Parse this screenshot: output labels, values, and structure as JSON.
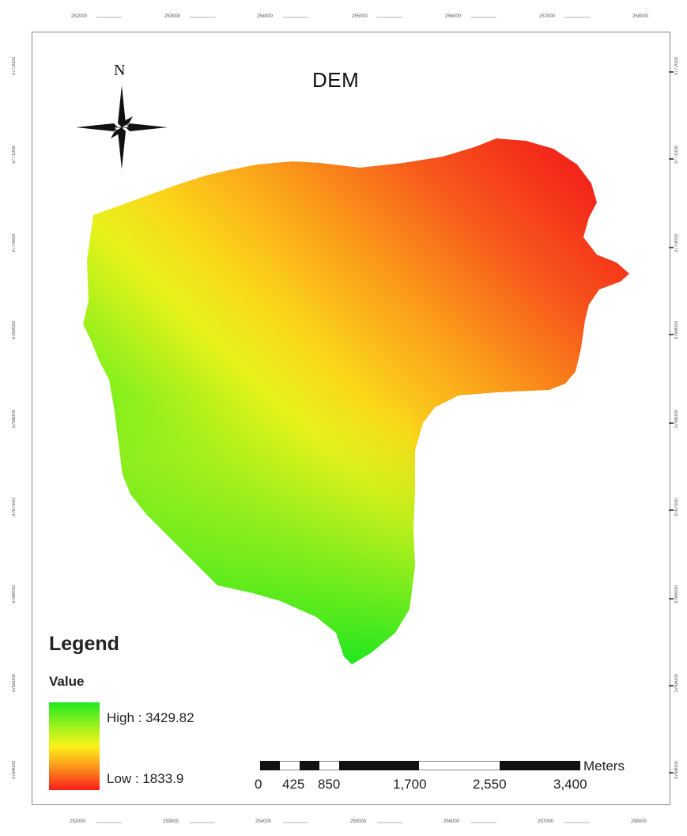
{
  "map": {
    "title": "DEM",
    "north_label": "N",
    "legend": {
      "title": "Legend",
      "field": "Value",
      "high_label": "High : 3429.82",
      "low_label": "Low : 1833.9",
      "colors": {
        "high": "#21e81f",
        "mid": "#fbf219",
        "low": "#f81d1a"
      }
    },
    "scale_bar": {
      "unit": "Meters",
      "labels": [
        "0",
        "425",
        "850",
        "1,700",
        "2,550",
        "3,400"
      ]
    },
    "grid_ticks_top": [
      "252000",
      "253000",
      "254000",
      "255000",
      "256000",
      "257000",
      "258000"
    ],
    "grid_ticks_bottom": [
      "252000",
      "253000",
      "254000",
      "255000",
      "256000",
      "257000",
      "258000"
    ],
    "grid_ticks_left": [
      "3772000",
      "3771000",
      "3770000",
      "3769000",
      "3768000",
      "3767000",
      "3766000",
      "3765000",
      "3764000"
    ],
    "grid_ticks_right": [
      "3772000",
      "3771000",
      "3770000",
      "3769000",
      "3768000",
      "3767000",
      "3766000",
      "3765000",
      "3764000"
    ]
  }
}
